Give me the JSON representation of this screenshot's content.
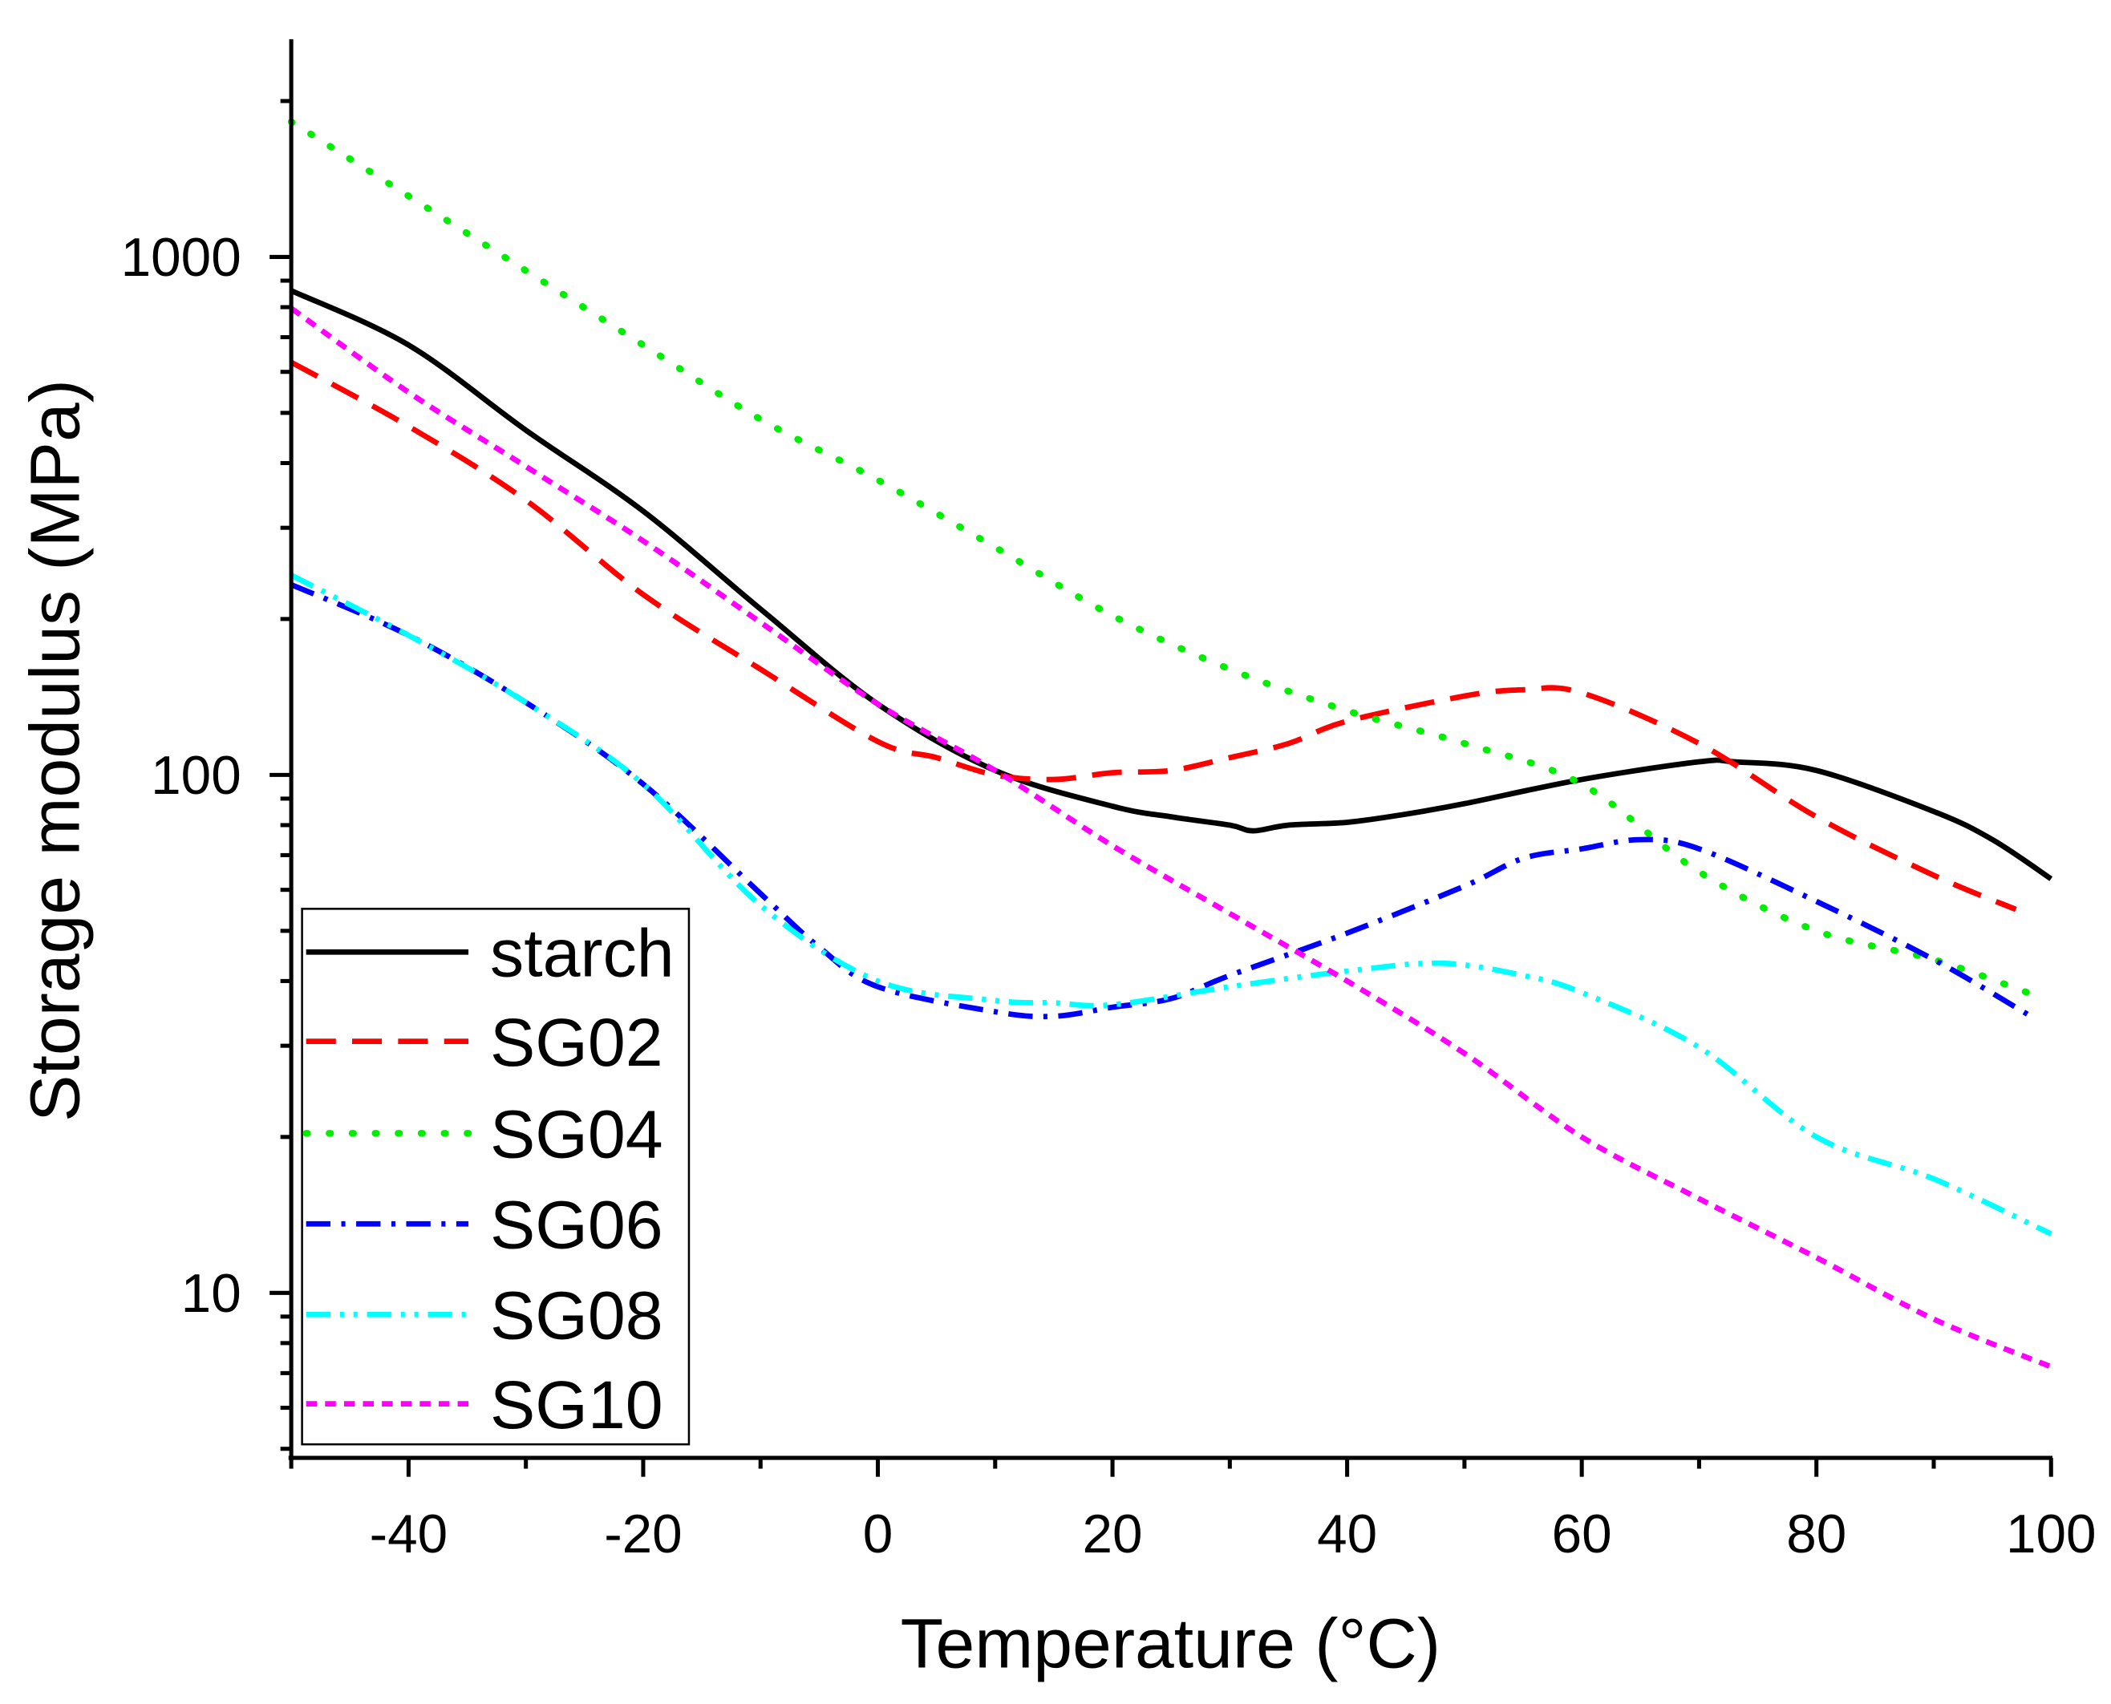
{
  "chart_data": {
    "type": "line",
    "title": "",
    "xlabel": "Temperature (°C)",
    "ylabel": "Storage modulus (MPa)",
    "xlim": [
      -50,
      100
    ],
    "ylim": [
      4.8,
      2620
    ],
    "yscale": "log",
    "grid": false,
    "legend_position": "bottom-left",
    "x_ticks": [
      "-40",
      "-20",
      "0",
      "20",
      "40",
      "60",
      "80",
      "100"
    ],
    "x_tick_values": [
      -40,
      -20,
      0,
      20,
      40,
      60,
      80,
      100
    ],
    "y_ticks": [
      "10",
      "100",
      "1000"
    ],
    "y_tick_values": [
      10,
      100,
      1000
    ],
    "series": [
      {
        "name": "starch",
        "color": "#000000",
        "style": "solid",
        "x": [
          -50,
          -40,
          -30,
          -20,
          -10,
          0,
          10,
          20,
          25,
          30,
          32,
          35,
          40,
          45,
          50,
          60,
          70,
          73,
          80,
          90,
          95,
          100
        ],
        "y": [
          861,
          676,
          463,
          323,
          209,
          137,
          102,
          87,
          83,
          80,
          78,
          80,
          81,
          84,
          88,
          98,
          106,
          106,
          102,
          85,
          75,
          63
        ]
      },
      {
        "name": "SG02",
        "color": "#ff0000",
        "style": "dashed",
        "x": [
          -50,
          -40,
          -30,
          -20,
          -10,
          0,
          5,
          10,
          15,
          20,
          25,
          30,
          35,
          40,
          50,
          55,
          60,
          70,
          80,
          90,
          97
        ],
        "y": [
          626,
          471,
          339,
          223,
          160,
          116,
          108,
          100,
          98,
          101,
          102,
          108,
          115,
          127,
          142,
          146,
          144,
          115,
          83,
          64,
          55
        ]
      },
      {
        "name": "SG04",
        "color": "#00ee00",
        "style": "dotted",
        "x": [
          -50,
          -40,
          -30,
          -20,
          -10,
          0,
          10,
          20,
          30,
          40,
          50,
          60,
          70,
          80,
          90,
          98
        ],
        "y": [
          1824,
          1311,
          941,
          676,
          486,
          371,
          275,
          203,
          160,
          133,
          115,
          96,
          65,
          50,
          44,
          38
        ]
      },
      {
        "name": "SG06",
        "color": "#0000ff",
        "style": "dash-dot",
        "x": [
          -50,
          -40,
          -30,
          -20,
          -10,
          -5,
          0,
          10,
          15,
          20,
          25,
          30,
          40,
          50,
          55,
          60,
          65,
          70,
          80,
          90,
          98
        ],
        "y": [
          233,
          186,
          138,
          96,
          59,
          46.5,
          39,
          34.9,
          34.2,
          35.6,
          37,
          41,
          49.5,
          61,
          69,
          72,
          75,
          72,
          57,
          44,
          34.5
        ]
      },
      {
        "name": "SG08",
        "color": "#00ffff",
        "style": "dash-dot-dot",
        "x": [
          -50,
          -40,
          -30,
          -20,
          -10,
          0,
          10,
          15,
          20,
          30,
          40,
          48,
          55,
          60,
          70,
          80,
          90,
          100
        ],
        "y": [
          243,
          186,
          138,
          96,
          56,
          40,
          36.7,
          36.3,
          36,
          39,
          41.8,
          43.3,
          41,
          38,
          29.8,
          20,
          16.6,
          13
        ]
      },
      {
        "name": "SG10",
        "color": "#ff00ff",
        "style": "short-dash",
        "x": [
          -50,
          -40,
          -30,
          -20,
          -10,
          0,
          10,
          20,
          30,
          40,
          50,
          60,
          70,
          80,
          90,
          100
        ],
        "y": [
          796,
          548,
          394,
          283,
          197,
          137,
          102,
          73,
          54,
          40,
          29,
          20,
          15.2,
          11.7,
          8.9,
          7.2
        ]
      }
    ]
  }
}
